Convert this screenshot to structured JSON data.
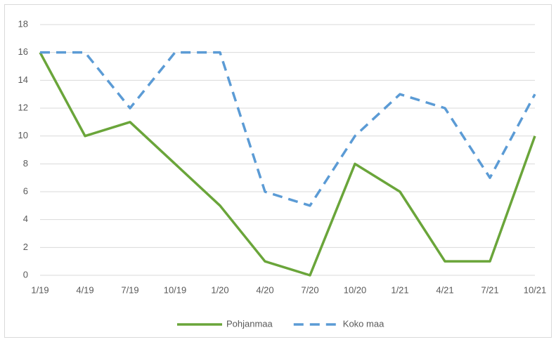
{
  "chart_data": {
    "type": "line",
    "categories": [
      "1/19",
      "4/19",
      "7/19",
      "10/19",
      "1/20",
      "4/20",
      "7/20",
      "10/20",
      "1/21",
      "4/21",
      "7/21",
      "10/21"
    ],
    "series": [
      {
        "name": "Pohjanmaa",
        "color": "#6aa53a",
        "dash": false,
        "values": [
          16,
          10,
          11,
          8,
          5,
          1,
          0,
          8,
          6,
          1,
          1,
          10
        ]
      },
      {
        "name": "Koko maa",
        "color": "#5b9bd5",
        "dash": true,
        "values": [
          16,
          16,
          12,
          16,
          16,
          6,
          5,
          10,
          13,
          12,
          7,
          13
        ]
      }
    ],
    "ylim": [
      0,
      18
    ],
    "yticks": [
      0,
      2,
      4,
      6,
      8,
      10,
      12,
      14,
      16,
      18
    ],
    "grid": true,
    "legend": "bottom"
  }
}
